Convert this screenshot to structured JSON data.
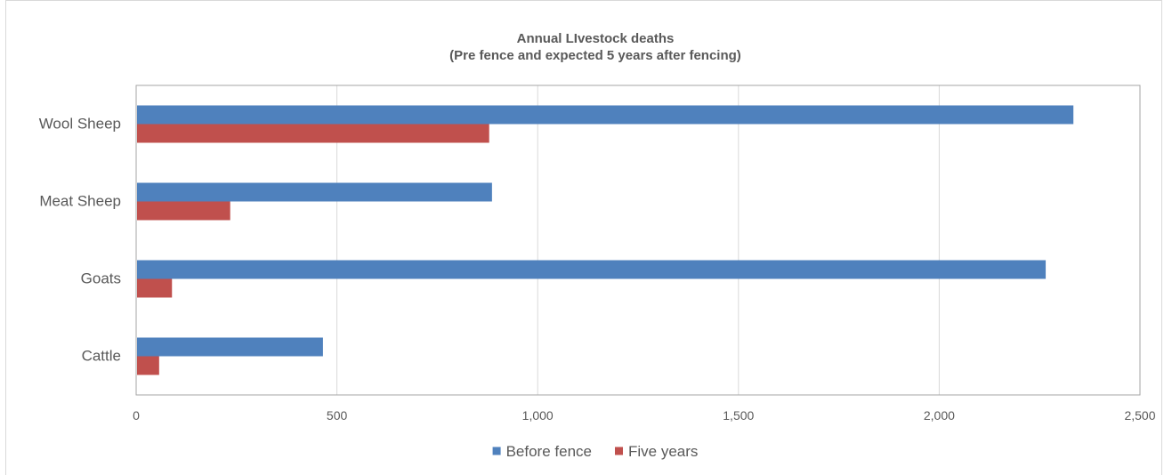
{
  "chart_data": {
    "type": "bar",
    "orientation": "horizontal",
    "title": "Annual LIvestock deaths",
    "subtitle": "(Pre fence and expected 5 years after fencing)",
    "categories": [
      "Cattle",
      "Goats",
      "Meat Sheep",
      "Wool Sheep"
    ],
    "series": [
      {
        "name": "Before fence",
        "color": "#4f81bd",
        "values": [
          463,
          2263,
          884,
          2332
        ]
      },
      {
        "name": "Five years",
        "color": "#c0504d",
        "values": [
          55,
          87,
          232,
          877
        ]
      }
    ],
    "xlim": [
      0,
      2500
    ],
    "x_ticks": [
      0,
      500,
      1000,
      1500,
      2000,
      2500
    ],
    "x_tick_labels": [
      "0",
      "500",
      "1,000",
      "1,500",
      "2,000",
      "2,500"
    ],
    "grid": "vertical",
    "legend": "bottom"
  }
}
